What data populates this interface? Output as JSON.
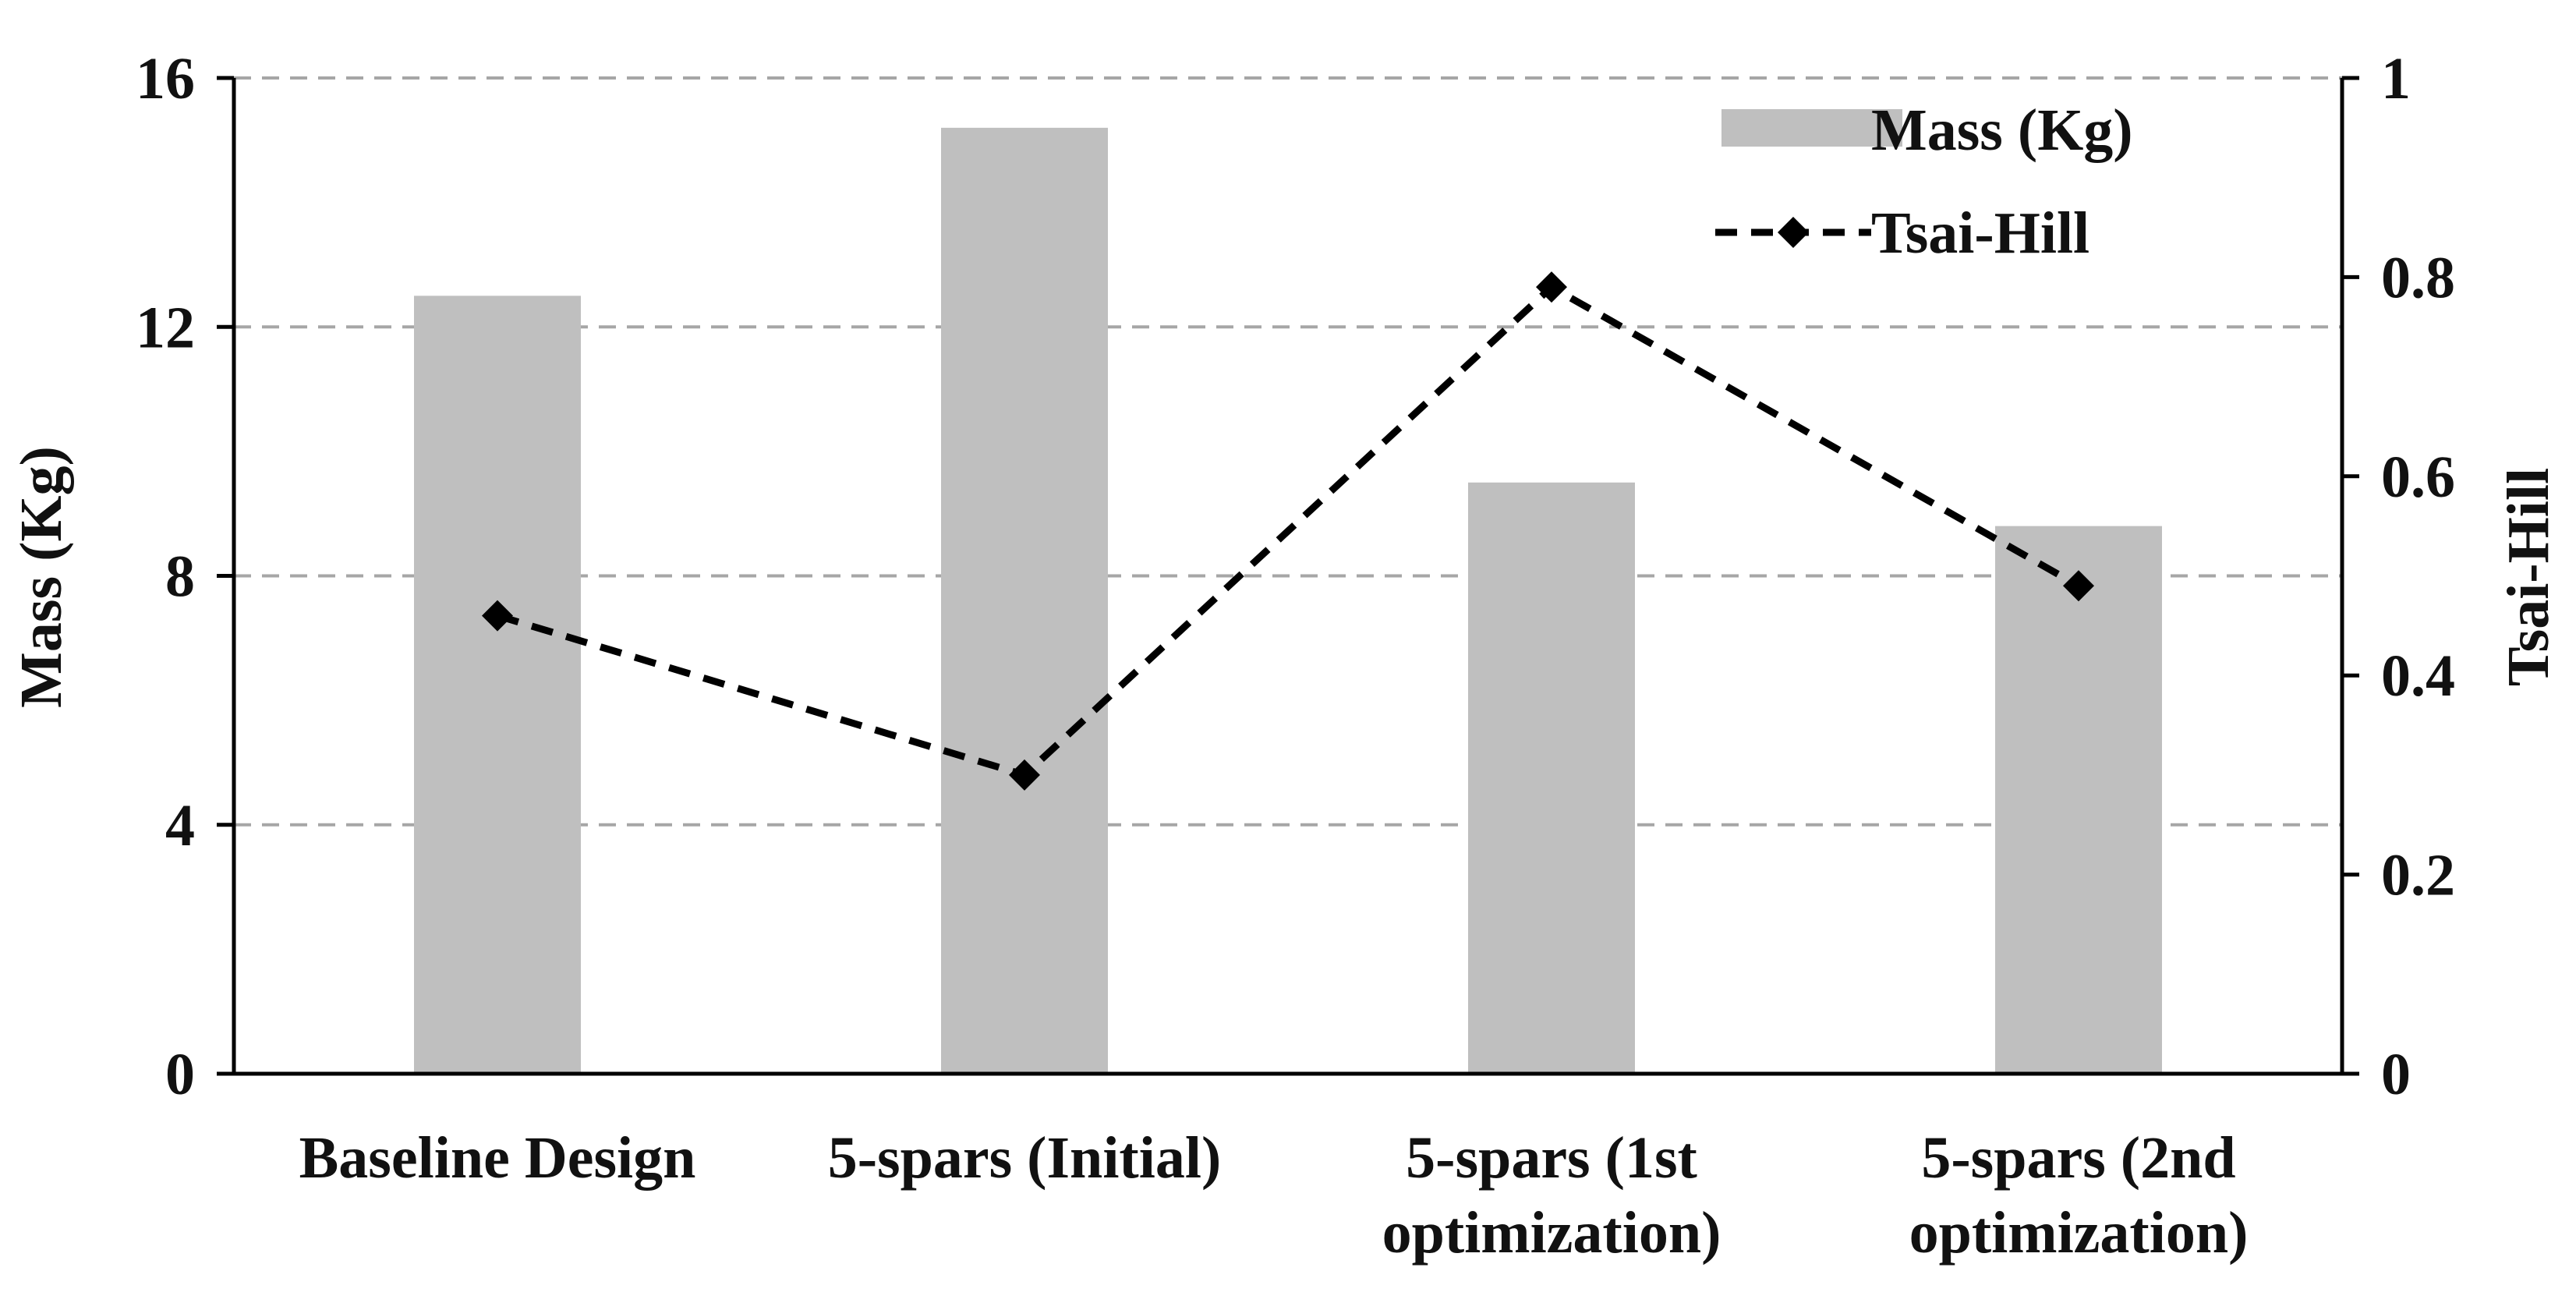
{
  "chart_data": {
    "type": "bar",
    "categories": [
      [
        "Baseline Design"
      ],
      [
        "5-spars (Initial)"
      ],
      [
        "5-spars (1st",
        "optimization)"
      ],
      [
        "5-spars (2nd",
        "optimization)"
      ]
    ],
    "series": [
      {
        "name": "Mass (Kg)",
        "type": "bar",
        "axis": "left",
        "values": [
          12.5,
          15.2,
          9.5,
          8.8
        ],
        "color": "#bfbfbf"
      },
      {
        "name": "Tsai-Hill",
        "type": "line",
        "axis": "right",
        "values": [
          0.46,
          0.3,
          0.79,
          0.49
        ],
        "color": "#000000",
        "line_style": "dashed",
        "marker": "diamond"
      }
    ],
    "ylabel_left": "Mass (Kg)",
    "ylabel_right": "Tsai-Hill",
    "ylim_left": [
      0,
      16
    ],
    "yticks_left": [
      "0",
      "4",
      "8",
      "12",
      "16"
    ],
    "ylim_right": [
      0,
      1
    ],
    "yticks_right": [
      "0",
      "0.2",
      "0.4",
      "0.6",
      "0.8",
      "1"
    ],
    "grid": "horizontal dashed",
    "legend_position": "top-right"
  }
}
